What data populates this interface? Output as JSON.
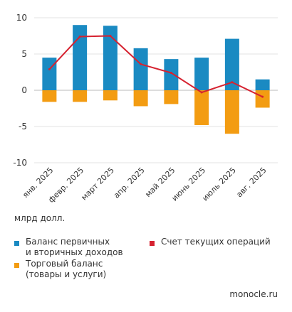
{
  "chart_data": {
    "type": "bar",
    "categories": [
      "янв. 2025",
      "февр. 2025",
      "март 2025",
      "апр. 2025",
      "май 2025",
      "июнь 2025",
      "июль 2025",
      "авг. 2025"
    ],
    "series": [
      {
        "name": "Баланс первичных и вторичных доходов",
        "kind": "bar",
        "color": "#1a8ac2",
        "values": [
          4.5,
          9.0,
          8.9,
          5.8,
          4.3,
          4.5,
          7.1,
          1.5
        ]
      },
      {
        "name": "Торговый баланс (товары и услуги)",
        "kind": "bar",
        "color": "#f39c12",
        "values": [
          -1.6,
          -1.6,
          -1.4,
          -2.2,
          -1.9,
          -4.8,
          -6.0,
          -2.4
        ]
      },
      {
        "name": "Счет текущих операций",
        "kind": "line",
        "color": "#d62230",
        "values": [
          2.9,
          7.4,
          7.5,
          3.6,
          2.4,
          -0.3,
          1.1,
          -0.9
        ]
      }
    ],
    "ylim": [
      -10,
      10
    ],
    "yticks": [
      10,
      5,
      0,
      -5,
      -10
    ],
    "ylabel": "млрд долл.",
    "grid": true,
    "legend_position": "bottom"
  },
  "legend": {
    "primary": [
      "Баланс первичных",
      "и вторичных доходов"
    ],
    "trade": [
      "Торговый баланс",
      "(товары и услуги)"
    ],
    "current": [
      "Счет текущих операций"
    ]
  },
  "unit_label": "млрд долл.",
  "source": "monocle.ru",
  "colors": {
    "grid": "#e3e3e3",
    "zero": "#b9b9b9"
  }
}
